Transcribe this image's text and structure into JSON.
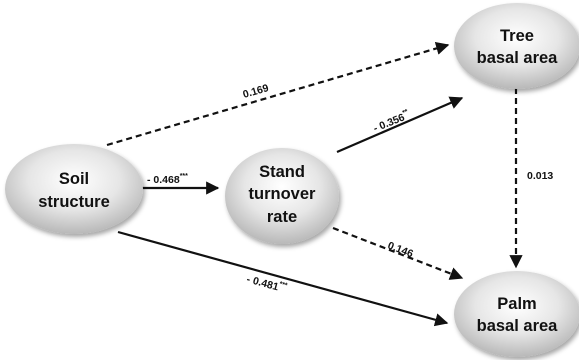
{
  "nodes": {
    "soil": {
      "lines": [
        "Soil",
        "structure"
      ]
    },
    "stand": {
      "lines": [
        "Stand",
        "turnover",
        "rate"
      ]
    },
    "tree": {
      "lines": [
        "Tree",
        "basal area"
      ]
    },
    "palm": {
      "lines": [
        "Palm",
        "basal area"
      ]
    }
  },
  "edges": {
    "soil_stand": {
      "value": "- 0.468",
      "sig": "***",
      "style": "solid"
    },
    "soil_tree": {
      "value": "0.169",
      "sig": "",
      "style": "dashed"
    },
    "stand_tree": {
      "value": "- 0.356",
      "sig": "**",
      "style": "solid"
    },
    "stand_palm": {
      "value": "0.146",
      "sig": "",
      "style": "dashed"
    },
    "soil_palm": {
      "value": "- 0.481",
      "sig": "***",
      "style": "solid"
    },
    "tree_palm": {
      "value": "0.013",
      "sig": "",
      "style": "dashed"
    }
  },
  "colors": {
    "node_fill_light": "#ffffff",
    "node_fill_dark": "#bfbfbf",
    "line": "#111111"
  }
}
